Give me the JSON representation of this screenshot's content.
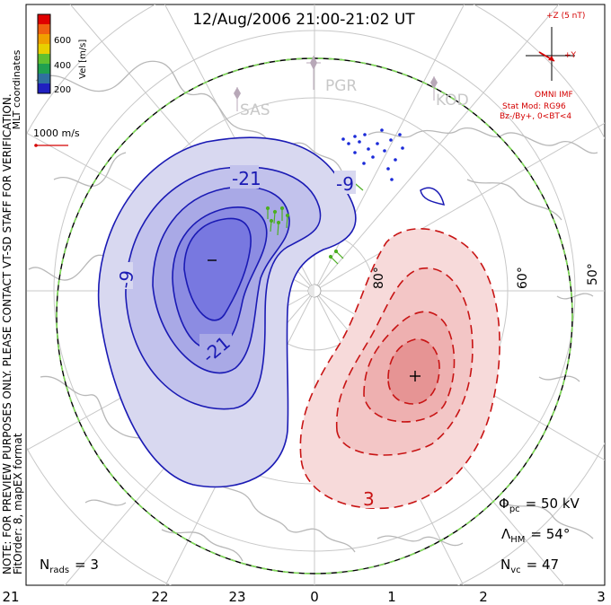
{
  "title": "12/Aug/2006 21:00-21:02 UT",
  "colorbar": {
    "unit_label": "Vel [m/s]",
    "tick_labels": [
      "600",
      "400",
      "200"
    ],
    "colors": [
      "#e00000",
      "#f06010",
      "#f0a000",
      "#e8d000",
      "#60c030",
      "#20a050",
      "#3070a0",
      "#2020c0"
    ]
  },
  "coordinates_label": "MLT coordinates",
  "notice": "NOTE: FOR PREVIEW PURPOSES ONLY. PLEASE CONTACT VT-SD STAFF FOR VERIFICATION.",
  "fit_info": "FitOrder: 8, mapEX format",
  "velocity_scale": "1000 m/s",
  "imf": {
    "z_label": "+Z (5 nT)",
    "y_label": "+Y",
    "source": "OMNI IMF",
    "stat_mod": "Stat Mod: RG96",
    "condition": "Bz-/By+, 0<BT<4"
  },
  "stations": [
    "PGR",
    "SAS",
    "KOD"
  ],
  "latitude_labels": [
    "80°",
    "60°",
    "50°"
  ],
  "contour_labels": [
    "-21",
    "-9",
    "-9",
    "-21",
    "3"
  ],
  "stats": {
    "phi_pc_symbol": "Φ",
    "phi_pc_sub": "pc",
    "phi_pc_value": "= 50 kV",
    "lambda_hm_symbol": "Λ",
    "lambda_hm_sub": "HM",
    "lambda_hm_value": "= 54°",
    "n_vc_symbol": "N",
    "n_vc_sub": "vc",
    "n_vc_value": "= 47",
    "n_rads_symbol": "N",
    "n_rads_sub": "rads",
    "n_rads_value": "= 3"
  },
  "mlt_labels": [
    "21",
    "22",
    "23",
    "0",
    "1",
    "2",
    "3"
  ],
  "colors": {
    "negative_cell": "#1a1ab4",
    "positive_cell": "#c81414",
    "hmb_boundary": "#000000",
    "hmb_dash": "#7ed957",
    "coastline": "#b8b8b8",
    "grid": "#c8c8c8"
  }
}
